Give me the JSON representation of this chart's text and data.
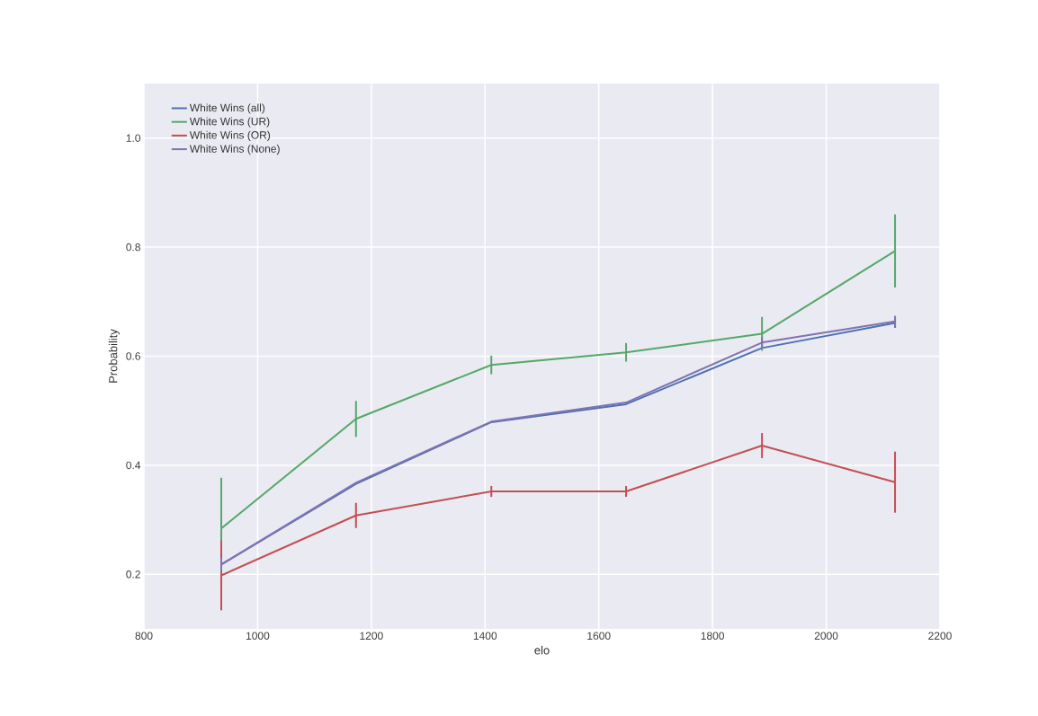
{
  "chart_data": {
    "type": "line",
    "xlabel": "elo",
    "ylabel": "Probability",
    "x": [
      936,
      1173,
      1411,
      1648,
      1887,
      2121
    ],
    "series": [
      {
        "name": "White Wins (all)",
        "color": "#4c72b0",
        "values": [
          0.218,
          0.366,
          0.479,
          0.512,
          0.615,
          0.661
        ],
        "errors": [
          0.01,
          null,
          null,
          null,
          null,
          0.009
        ]
      },
      {
        "name": "White Wins (UR)",
        "color": "#55a868",
        "values": [
          0.284,
          0.485,
          0.584,
          0.607,
          0.641,
          0.793
        ],
        "errors": [
          0.093,
          0.033,
          0.017,
          0.017,
          0.031,
          0.067
        ]
      },
      {
        "name": "White Wins (OR)",
        "color": "#c44e52",
        "values": [
          0.198,
          0.308,
          0.352,
          0.352,
          0.436,
          0.369
        ],
        "errors": [
          0.064,
          0.023,
          0.01,
          0.01,
          0.023,
          0.056
        ]
      },
      {
        "name": "White Wins (None)",
        "color": "#8172b2",
        "values": [
          0.218,
          0.368,
          0.48,
          0.515,
          0.625,
          0.664
        ],
        "errors": [
          0.012,
          null,
          null,
          null,
          0.01,
          0.01
        ]
      }
    ],
    "xlim": [
      800,
      2200
    ],
    "ylim": [
      0.1,
      1.1
    ],
    "xticks": [
      800,
      1000,
      1200,
      1400,
      1600,
      1800,
      2000,
      2200
    ],
    "yticks": [
      0.2,
      0.4,
      0.6,
      0.8,
      {
        "value": 1.0,
        "label": "1.0"
      }
    ],
    "grid": true,
    "legend": "top left"
  }
}
